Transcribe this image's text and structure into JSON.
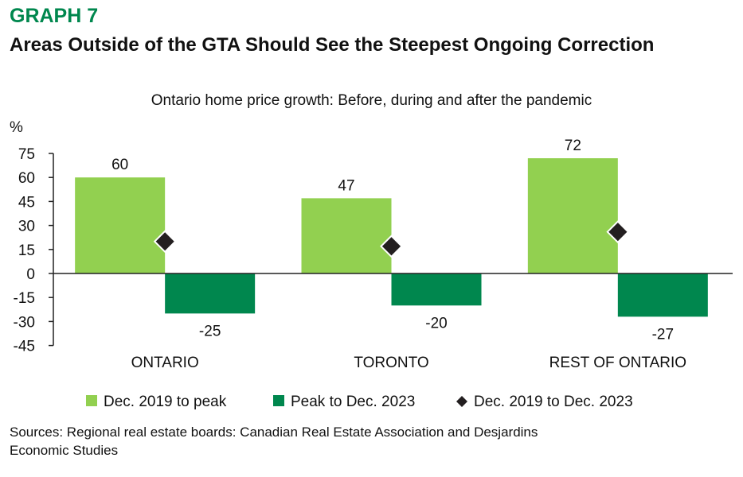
{
  "header": {
    "graph_label": "GRAPH 7",
    "title": "Areas Outside of the GTA Should See the Steepest Ongoing Correction"
  },
  "footer": {
    "sources": "Sources: Regional real estate boards: Canadian Real Estate Association and Desjardins Economic Studies"
  },
  "chart_data": {
    "type": "bar",
    "title": "Ontario home price growth: Before, during and after the pandemic",
    "ylabel": "%",
    "xlabel": "",
    "ylim": [
      -45,
      75
    ],
    "yticks": [
      75,
      60,
      45,
      30,
      15,
      0,
      -15,
      -30,
      -45
    ],
    "grid": false,
    "legend_position": "bottom",
    "categories": [
      "ONTARIO",
      "TORONTO",
      "REST OF ONTARIO"
    ],
    "series": [
      {
        "name": "Dec. 2019 to peak",
        "kind": "bar",
        "color": "#92d050",
        "values": [
          60,
          47,
          72
        ],
        "labels": [
          "60",
          "47",
          "72"
        ]
      },
      {
        "name": "Peak to Dec. 2023",
        "kind": "bar",
        "color": "#00874e",
        "values": [
          -25,
          -20,
          -27
        ],
        "labels": [
          "-25",
          "-20",
          "-27"
        ]
      },
      {
        "name": "Dec. 2019 to Dec. 2023",
        "kind": "diamond",
        "color": "#231f20",
        "values": [
          20,
          17,
          26
        ]
      }
    ]
  }
}
